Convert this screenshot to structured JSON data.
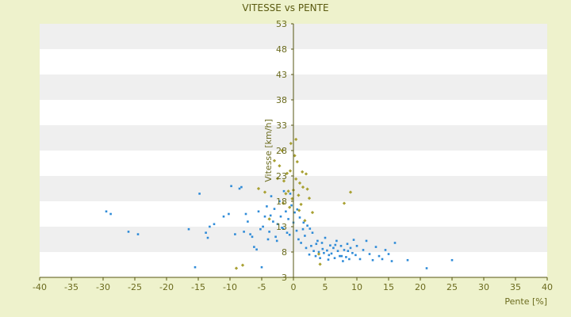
{
  "chart_data": {
    "type": "scatter",
    "title": "VITESSE vs PENTE",
    "xlabel": "Pente [%]",
    "ylabel": "Vitesse [km/h]",
    "xlim": [
      -40,
      40
    ],
    "ylim": [
      3,
      53
    ],
    "x_ticks": [
      "-40",
      "-35",
      "-30",
      "-25",
      "-20",
      "-15",
      "-10",
      "-5",
      "0",
      "5",
      "10",
      "15",
      "20",
      "25",
      "30",
      "35",
      "40"
    ],
    "y_ticks": [
      "3",
      "8",
      "13",
      "18",
      "23",
      "28",
      "33",
      "38",
      "43",
      "48",
      "53"
    ],
    "grid": "horizontal bands",
    "colors": {
      "plot_band_light": "#ffffff",
      "plot_band_dark": "#efefef",
      "background": "#eef2cc",
      "axis": "#555511",
      "text": "#6b6b1e",
      "series_main": "#2e8bd8",
      "series_alt": "#a8a032"
    },
    "series": [
      {
        "color": "#2e8bd8",
        "points": [
          [
            -29.5,
            16
          ],
          [
            -28.8,
            15.5
          ],
          [
            -26,
            12
          ],
          [
            -24.5,
            11.5
          ],
          [
            -16.5,
            12.5
          ],
          [
            -15.5,
            5
          ],
          [
            -14.8,
            19.5
          ],
          [
            -13.8,
            11.8
          ],
          [
            -13.5,
            10.8
          ],
          [
            -13.2,
            13
          ],
          [
            -12.5,
            13.5
          ],
          [
            -11,
            15
          ],
          [
            -10.2,
            15.5
          ],
          [
            -9.8,
            21
          ],
          [
            -9.2,
            11.5
          ],
          [
            -8.5,
            20.5
          ],
          [
            -8.2,
            20.8
          ],
          [
            -7.8,
            12
          ],
          [
            -7.5,
            15.5
          ],
          [
            -7.2,
            14
          ],
          [
            -6.8,
            11.5
          ],
          [
            -6.5,
            11
          ],
          [
            -6.2,
            9
          ],
          [
            -5.8,
            8.5
          ],
          [
            -5.5,
            16
          ],
          [
            -5.2,
            12.5
          ],
          [
            -5,
            5
          ],
          [
            -4.8,
            13
          ],
          [
            -4.5,
            15
          ],
          [
            -4.2,
            17
          ],
          [
            -4,
            10.5
          ],
          [
            -3.8,
            12
          ],
          [
            -3.5,
            19
          ],
          [
            -3.2,
            14
          ],
          [
            -3,
            16.5
          ],
          [
            -2.8,
            11
          ],
          [
            -2.5,
            13.5
          ],
          [
            -2.2,
            18
          ],
          [
            -2,
            15
          ],
          [
            -1.8,
            12.8
          ],
          [
            -1.5,
            20
          ],
          [
            -1.2,
            16
          ],
          [
            -1,
            11.8
          ],
          [
            -0.8,
            14.5
          ],
          [
            -0.5,
            19.5
          ],
          [
            -0.3,
            17.2
          ],
          [
            0,
            13.8
          ],
          [
            0.2,
            15.8
          ],
          [
            0.5,
            12.2
          ],
          [
            0.8,
            10.5
          ],
          [
            1,
            14.8
          ],
          [
            1.2,
            9.8
          ],
          [
            1.5,
            12.5
          ],
          [
            1.8,
            11.2
          ],
          [
            2,
            8.8
          ],
          [
            2.2,
            13.2
          ],
          [
            2.5,
            7.5
          ],
          [
            2.8,
            9.2
          ],
          [
            3,
            11.8
          ],
          [
            3.2,
            8.2
          ],
          [
            3.5,
            7.2
          ],
          [
            3.8,
            10.2
          ],
          [
            4,
            8
          ],
          [
            4.2,
            6.8
          ],
          [
            4.5,
            9.8
          ],
          [
            4.8,
            7.8
          ],
          [
            5,
            10.8
          ],
          [
            5.3,
            8.3
          ],
          [
            5.5,
            6.5
          ],
          [
            5.8,
            9.3
          ],
          [
            6,
            7.7
          ],
          [
            6.3,
            8.8
          ],
          [
            6.5,
            6.8
          ],
          [
            6.8,
            10.2
          ],
          [
            7,
            8.2
          ],
          [
            7.3,
            7.2
          ],
          [
            7.5,
            9.2
          ],
          [
            7.8,
            6.2
          ],
          [
            8,
            8.4
          ],
          [
            8.3,
            7
          ],
          [
            8.5,
            9.6
          ],
          [
            8.8,
            6.6
          ],
          [
            9,
            8.8
          ],
          [
            9.3,
            7.8
          ],
          [
            9.5,
            10.4
          ],
          [
            9.8,
            7.4
          ],
          [
            10,
            9.2
          ],
          [
            10.5,
            6.6
          ],
          [
            11,
            8.4
          ],
          [
            11.5,
            10.2
          ],
          [
            12,
            7.6
          ],
          [
            12.5,
            6.4
          ],
          [
            13,
            9
          ],
          [
            13.5,
            7.2
          ],
          [
            14,
            6.6
          ],
          [
            14.5,
            8.4
          ],
          [
            15,
            7.6
          ],
          [
            15.5,
            6.2
          ],
          [
            16,
            9.8
          ],
          [
            18,
            6.4
          ],
          [
            21,
            4.8
          ],
          [
            25,
            6.4
          ],
          [
            -3.6,
            15.2
          ],
          [
            -2.6,
            10.2
          ],
          [
            -1.6,
            12.6
          ],
          [
            -0.6,
            11.4
          ],
          [
            0.6,
            16.4
          ],
          [
            1.6,
            13.8
          ],
          [
            2.6,
            12.6
          ],
          [
            3.6,
            9.6
          ],
          [
            4.6,
            8.6
          ],
          [
            5.6,
            7.4
          ],
          [
            6.6,
            9.4
          ],
          [
            7.6,
            7.2
          ],
          [
            8.6,
            8.2
          ]
        ]
      },
      {
        "color": "#a8a032",
        "points": [
          [
            -9,
            4.8
          ],
          [
            -8,
            5.4
          ],
          [
            -5.5,
            20.5
          ],
          [
            -4.5,
            19.8
          ],
          [
            -3.8,
            14.5
          ],
          [
            -3,
            26
          ],
          [
            -2.5,
            22.5
          ],
          [
            -2.2,
            25
          ],
          [
            -1.8,
            28
          ],
          [
            -1.5,
            22
          ],
          [
            -1.2,
            19.5
          ],
          [
            -1,
            23.5
          ],
          [
            -0.8,
            20
          ],
          [
            -0.5,
            24
          ],
          [
            -0.2,
            18.5
          ],
          [
            0,
            20.2
          ],
          [
            0.2,
            27
          ],
          [
            0.4,
            22.4
          ],
          [
            0.6,
            25.8
          ],
          [
            0.8,
            19.2
          ],
          [
            1,
            21.6
          ],
          [
            1.2,
            17.4
          ],
          [
            1.5,
            20.8
          ],
          [
            1.8,
            14.2
          ],
          [
            2,
            23.4
          ],
          [
            2.5,
            18.6
          ],
          [
            3,
            15.8
          ],
          [
            4,
            7.6
          ],
          [
            8,
            17.6
          ],
          [
            9,
            19.8
          ],
          [
            4.2,
            5.6
          ],
          [
            -0.4,
            29.4
          ],
          [
            0.4,
            30.2
          ],
          [
            -0.6,
            16.8
          ],
          [
            0.9,
            16.2
          ],
          [
            -1.6,
            17.6
          ],
          [
            2.2,
            20.4
          ],
          [
            1.4,
            23.8
          ]
        ]
      }
    ]
  }
}
